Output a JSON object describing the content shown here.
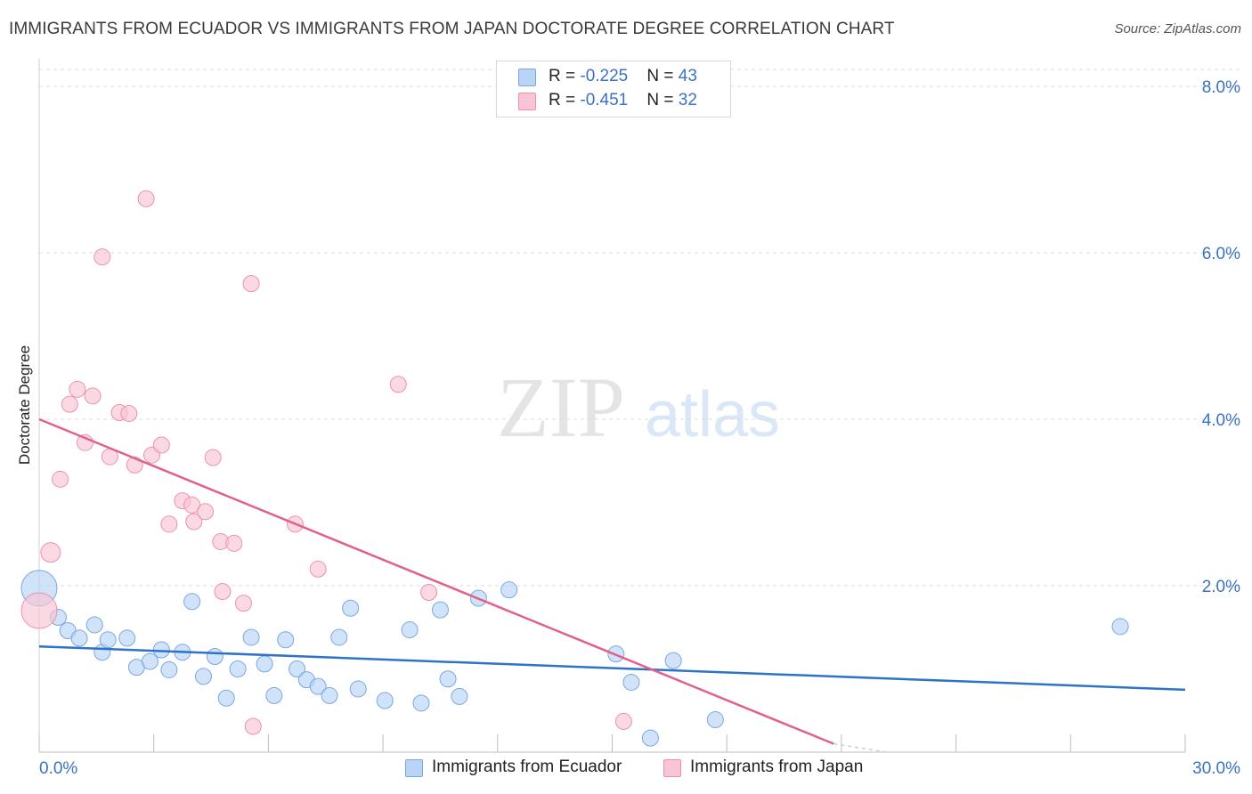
{
  "title": "IMMIGRANTS FROM ECUADOR VS IMMIGRANTS FROM JAPAN DOCTORATE DEGREE CORRELATION CHART",
  "source": "Source: ZipAtlas.com",
  "watermark": {
    "zip": "ZIP",
    "atlas": "atlas"
  },
  "legend_top": {
    "rows": [
      {
        "r_label": "R = ",
        "r_value": "-0.225",
        "n_label": "N = ",
        "n_value": "43"
      },
      {
        "r_label": "R = ",
        "r_value": "-0.451",
        "n_label": "N = ",
        "n_value": "32"
      }
    ]
  },
  "colors": {
    "ecuador_fill": "#b9d4f5",
    "ecuador_stroke": "#7aa7e0",
    "ecuador_line": "#2f72c9",
    "japan_fill": "#f9c4d4",
    "japan_stroke": "#ec91ad",
    "japan_line": "#e0608e",
    "tick_label": "#3a72c4",
    "grid": "#dcdcdc"
  },
  "chart_data": {
    "type": "scatter",
    "title": "IMMIGRANTS FROM ECUADOR VS IMMIGRANTS FROM JAPAN DOCTORATE DEGREE CORRELATION CHART",
    "xlabel": "",
    "ylabel": "Doctorate Degree",
    "xlim": [
      0,
      30
    ],
    "ylim": [
      0,
      8
    ],
    "x_tick_labels": [
      "0.0%",
      "30.0%"
    ],
    "y_ticks": [
      2,
      4,
      6,
      8
    ],
    "y_tick_labels": [
      "2.0%",
      "4.0%",
      "6.0%",
      "8.0%"
    ],
    "grid": "horizontal dashed",
    "legend_placement": "top-center and bottom",
    "series": [
      {
        "name": "Immigrants from Ecuador",
        "r": -0.225,
        "n": 43,
        "trend": {
          "x": [
            0,
            30
          ],
          "y": [
            1.27,
            0.75
          ]
        },
        "points": [
          [
            0.0,
            1.97,
            20
          ],
          [
            0.5,
            1.62,
            9
          ],
          [
            0.75,
            1.46,
            9
          ],
          [
            1.05,
            1.37,
            9
          ],
          [
            1.45,
            1.53,
            9
          ],
          [
            1.65,
            1.2,
            9
          ],
          [
            1.8,
            1.35,
            9
          ],
          [
            2.3,
            1.37,
            9
          ],
          [
            2.55,
            1.02,
            9
          ],
          [
            2.9,
            1.09,
            9
          ],
          [
            3.2,
            1.23,
            9
          ],
          [
            3.4,
            0.99,
            9
          ],
          [
            3.75,
            1.2,
            9
          ],
          [
            4.0,
            1.81,
            9
          ],
          [
            4.3,
            0.91,
            9
          ],
          [
            4.6,
            1.15,
            9
          ],
          [
            4.9,
            0.65,
            9
          ],
          [
            5.2,
            1.0,
            9
          ],
          [
            5.55,
            1.38,
            9
          ],
          [
            5.9,
            1.06,
            9
          ],
          [
            6.15,
            0.68,
            9
          ],
          [
            6.45,
            1.35,
            9
          ],
          [
            6.75,
            1.0,
            9
          ],
          [
            7.0,
            0.87,
            9
          ],
          [
            7.3,
            0.79,
            9
          ],
          [
            7.6,
            0.68,
            9
          ],
          [
            7.85,
            1.38,
            9
          ],
          [
            8.15,
            1.73,
            9
          ],
          [
            8.35,
            0.76,
            9
          ],
          [
            9.05,
            0.62,
            9
          ],
          [
            9.7,
            1.47,
            9
          ],
          [
            10.0,
            0.59,
            9
          ],
          [
            10.5,
            1.71,
            9
          ],
          [
            10.7,
            0.88,
            9
          ],
          [
            11.0,
            0.67,
            9
          ],
          [
            11.5,
            1.85,
            9
          ],
          [
            12.3,
            1.95,
            9
          ],
          [
            15.1,
            1.18,
            9
          ],
          [
            15.5,
            0.84,
            9
          ],
          [
            16.0,
            0.17,
            9
          ],
          [
            16.6,
            1.1,
            9
          ],
          [
            17.7,
            0.39,
            9
          ],
          [
            28.3,
            1.51,
            9
          ]
        ]
      },
      {
        "name": "Immigrants from Japan",
        "r": -0.451,
        "n": 32,
        "trend": {
          "x": [
            0,
            20.8
          ],
          "y": [
            4.0,
            0.1
          ]
        },
        "dashed_extension": {
          "x": [
            20.8,
            22.2
          ],
          "y": [
            0.1,
            -0.15
          ]
        },
        "points": [
          [
            0.0,
            1.7,
            20
          ],
          [
            0.3,
            2.4,
            11
          ],
          [
            0.55,
            3.28,
            9
          ],
          [
            0.8,
            4.18,
            9
          ],
          [
            1.0,
            4.36,
            9
          ],
          [
            1.2,
            3.72,
            9
          ],
          [
            1.4,
            4.28,
            9
          ],
          [
            1.65,
            5.95,
            9
          ],
          [
            1.85,
            3.55,
            9
          ],
          [
            2.1,
            4.08,
            9
          ],
          [
            2.35,
            4.07,
            9
          ],
          [
            2.5,
            3.45,
            9
          ],
          [
            2.8,
            6.65,
            9
          ],
          [
            2.95,
            3.57,
            9
          ],
          [
            3.2,
            3.69,
            9
          ],
          [
            3.4,
            2.74,
            9
          ],
          [
            3.75,
            3.02,
            9
          ],
          [
            4.0,
            2.97,
            9
          ],
          [
            4.05,
            2.77,
            9
          ],
          [
            4.35,
            2.89,
            9
          ],
          [
            4.55,
            3.54,
            9
          ],
          [
            4.75,
            2.53,
            9
          ],
          [
            4.8,
            1.93,
            9
          ],
          [
            5.1,
            2.51,
            9
          ],
          [
            5.35,
            1.79,
            9
          ],
          [
            5.55,
            5.63,
            9
          ],
          [
            5.6,
            0.31,
            9
          ],
          [
            6.7,
            2.74,
            9
          ],
          [
            7.3,
            2.2,
            9
          ],
          [
            9.4,
            4.42,
            9
          ],
          [
            10.2,
            1.92,
            9
          ],
          [
            15.3,
            0.37,
            9
          ]
        ]
      }
    ]
  },
  "legend_bottom": [
    {
      "label": "Immigrants from Ecuador"
    },
    {
      "label": "Immigrants from Japan"
    }
  ]
}
